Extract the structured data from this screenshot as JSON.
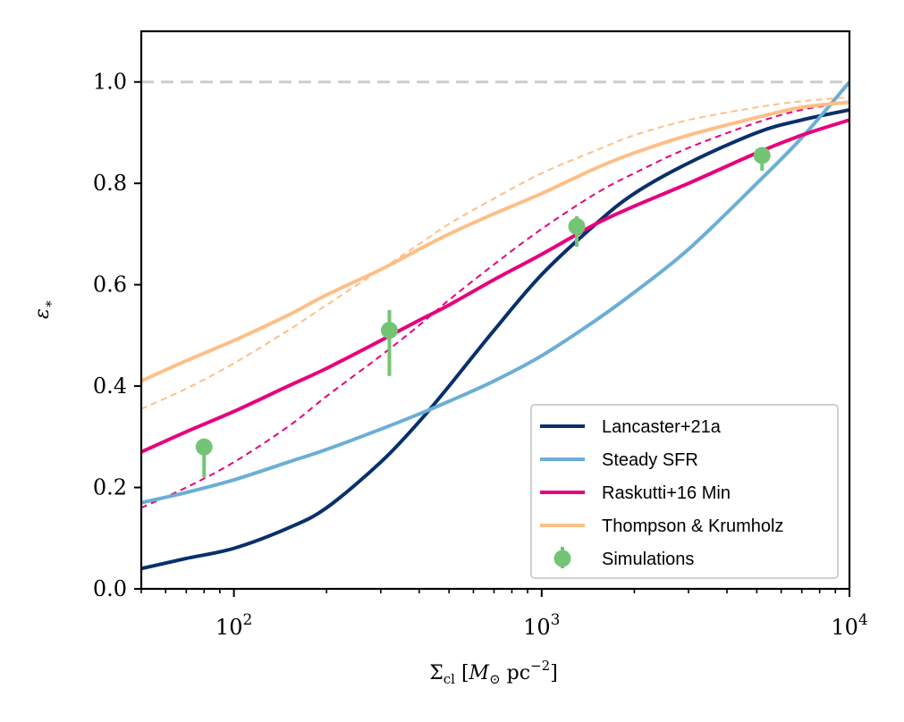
{
  "chart_data": {
    "type": "line",
    "xscale": "log",
    "xlim": [
      50,
      10000
    ],
    "ylim": [
      0.0,
      1.1
    ],
    "xlabel": "Σcl [M⊙ pc⁻²]",
    "ylabel": "ε*",
    "y_ticks": [
      "0.0",
      "0.2",
      "0.4",
      "0.6",
      "0.8",
      "1.0"
    ],
    "y_tick_values": [
      0.0,
      0.2,
      0.4,
      0.6,
      0.8,
      1.0
    ],
    "x_major_ticks": [
      {
        "value": 100,
        "base": "10",
        "exp": "2"
      },
      {
        "value": 1000,
        "base": "10",
        "exp": "3"
      },
      {
        "value": 10000,
        "base": "10",
        "exp": "4"
      }
    ],
    "reference_line": {
      "y": 1.0,
      "style": "dashed",
      "color": "#cccccc"
    },
    "series": [
      {
        "name": "Lancaster+21a",
        "color": "#08306b",
        "style": "solid",
        "x": [
          50,
          70,
          100,
          150,
          200,
          300,
          400,
          500,
          700,
          1000,
          1500,
          2000,
          3000,
          5000,
          7000,
          10000
        ],
        "y": [
          0.04,
          0.06,
          0.08,
          0.12,
          0.16,
          0.25,
          0.33,
          0.4,
          0.51,
          0.62,
          0.72,
          0.78,
          0.84,
          0.9,
          0.925,
          0.945
        ]
      },
      {
        "name": "Steady SFR",
        "color": "#6baed6",
        "style": "solid",
        "x": [
          50,
          70,
          100,
          150,
          200,
          300,
          400,
          500,
          700,
          1000,
          1500,
          2000,
          3000,
          5000,
          7000,
          10000
        ],
        "y": [
          0.17,
          0.19,
          0.215,
          0.25,
          0.275,
          0.315,
          0.345,
          0.37,
          0.41,
          0.46,
          0.53,
          0.585,
          0.67,
          0.8,
          0.89,
          1.0
        ]
      },
      {
        "name": "Raskutti+16 Min",
        "color": "#e7007d",
        "style": "solid",
        "x": [
          50,
          70,
          100,
          150,
          200,
          300,
          400,
          500,
          700,
          1000,
          1500,
          2000,
          3000,
          5000,
          7000,
          10000
        ],
        "y": [
          0.27,
          0.31,
          0.35,
          0.4,
          0.435,
          0.49,
          0.53,
          0.56,
          0.61,
          0.66,
          0.72,
          0.755,
          0.8,
          0.86,
          0.895,
          0.925
        ]
      },
      {
        "name": "Raskutti+16 Min (dashed)",
        "color": "#e7007d",
        "style": "dashed",
        "x": [
          50,
          70,
          100,
          150,
          200,
          300,
          400,
          500,
          700,
          1000,
          1500,
          2000,
          3000,
          5000,
          7000,
          10000
        ],
        "y": [
          0.16,
          0.2,
          0.25,
          0.32,
          0.38,
          0.46,
          0.52,
          0.57,
          0.64,
          0.71,
          0.78,
          0.82,
          0.87,
          0.92,
          0.945,
          0.96
        ]
      },
      {
        "name": "Thompson & Krumholz",
        "color": "#fdbf86",
        "style": "solid",
        "x": [
          50,
          70,
          100,
          150,
          200,
          300,
          400,
          500,
          700,
          1000,
          1500,
          2000,
          3000,
          5000,
          7000,
          10000
        ],
        "y": [
          0.41,
          0.45,
          0.49,
          0.54,
          0.58,
          0.63,
          0.67,
          0.7,
          0.74,
          0.78,
          0.83,
          0.86,
          0.895,
          0.93,
          0.95,
          0.96
        ]
      },
      {
        "name": "Thompson & Krumholz (dashed)",
        "color": "#fdbf86",
        "style": "dashed",
        "x": [
          50,
          70,
          100,
          150,
          200,
          300,
          400,
          500,
          700,
          1000,
          1500,
          2000,
          3000,
          5000,
          7000,
          10000
        ],
        "y": [
          0.355,
          0.395,
          0.445,
          0.51,
          0.56,
          0.63,
          0.68,
          0.72,
          0.77,
          0.82,
          0.865,
          0.895,
          0.925,
          0.95,
          0.962,
          0.97
        ]
      }
    ],
    "scatter": {
      "name": "Simulations",
      "color": "#74c476",
      "points": [
        {
          "x": 80,
          "y": 0.28,
          "err_lo": 0.06,
          "err_hi": 0.0
        },
        {
          "x": 320,
          "y": 0.51,
          "err_lo": 0.09,
          "err_hi": 0.04
        },
        {
          "x": 1300,
          "y": 0.715,
          "err_lo": 0.04,
          "err_hi": 0.02
        },
        {
          "x": 5200,
          "y": 0.855,
          "err_lo": 0.03,
          "err_hi": 0.0
        }
      ]
    },
    "legend": {
      "position": "lower right",
      "entries": [
        {
          "label": "Lancaster+21a",
          "color": "#08306b",
          "kind": "line"
        },
        {
          "label": "Steady SFR",
          "color": "#6baed6",
          "kind": "line"
        },
        {
          "label": "Raskutti+16 Min",
          "color": "#e7007d",
          "kind": "line"
        },
        {
          "label": "Thompson & Krumholz",
          "color": "#fdbf86",
          "kind": "line"
        },
        {
          "label": "Simulations",
          "color": "#74c476",
          "kind": "errorbar"
        }
      ]
    }
  }
}
